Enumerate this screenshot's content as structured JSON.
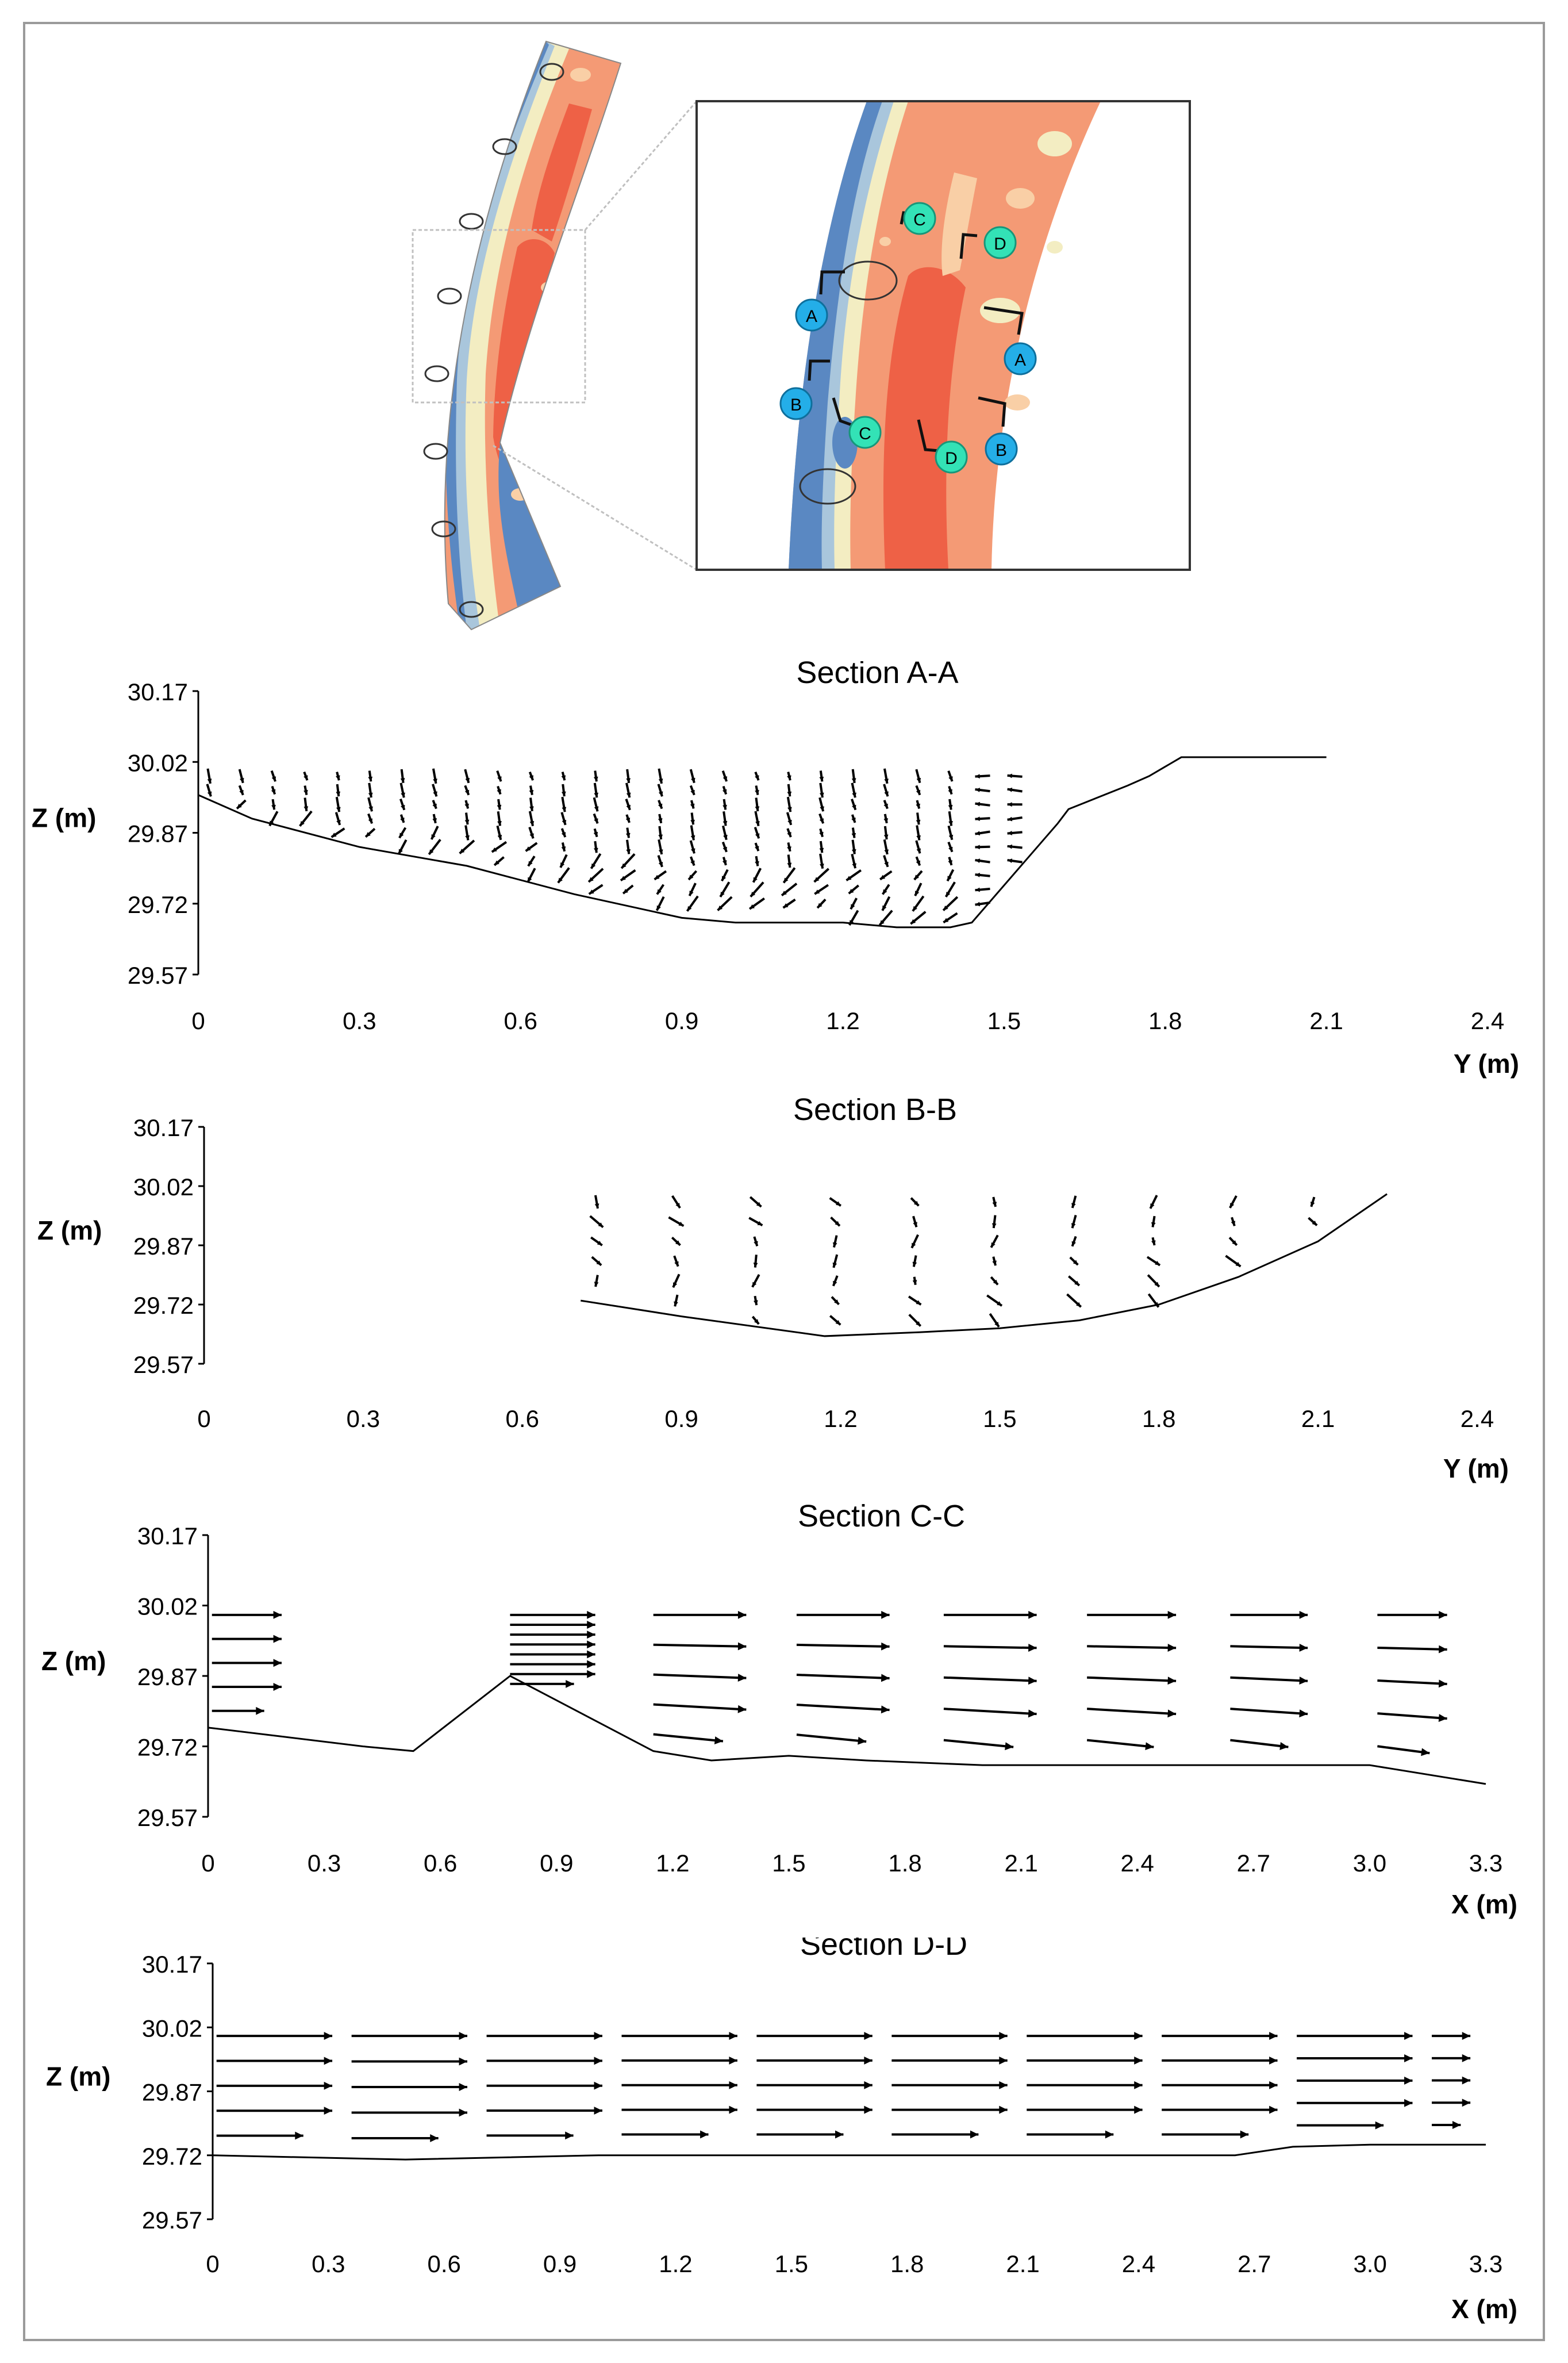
{
  "map": {
    "markers": [
      "A",
      "A",
      "B",
      "B",
      "C",
      "C",
      "D",
      "D"
    ],
    "colors": {
      "deep": "#ee6146",
      "mid": "#f49a75",
      "light": "#f9cfa6",
      "pale": "#f3edc2",
      "shallow": "#a9c6dc",
      "low": "#5a88c2",
      "marker_blue": "#24aee8",
      "marker_green": "#33e2b6"
    }
  },
  "chart_data": [
    {
      "type": "vector",
      "title": "Section A-A",
      "xlabel": "Y (m)",
      "ylabel": "Z (m)",
      "xlim": [
        0,
        2.4
      ],
      "ylim": [
        29.57,
        30.17
      ],
      "xticks": [
        "0",
        "0.3",
        "0.6",
        "0.9",
        "1.2",
        "1.5",
        "1.8",
        "2.1",
        "2.4"
      ],
      "yticks": [
        "30.17",
        "30.02",
        "29.87",
        "29.72",
        "29.57"
      ],
      "bed": {
        "x": [
          0,
          0.1,
          0.3,
          0.5,
          0.7,
          0.9,
          1.0,
          1.2,
          1.3,
          1.4,
          1.44,
          1.6,
          1.62,
          1.73,
          1.77,
          1.8,
          1.83,
          2.1
        ],
        "z": [
          29.95,
          29.9,
          29.84,
          29.8,
          29.74,
          29.69,
          29.68,
          29.68,
          29.67,
          29.67,
          29.68,
          29.89,
          29.92,
          29.97,
          29.99,
          30.01,
          30.03,
          30.03
        ]
      },
      "vectors": {
        "x_start": 0.02,
        "x_step": 0.06,
        "count": 26,
        "z_top": 29.99,
        "z_step": 0.03,
        "surface": 29.995,
        "note": "secondary flow vectors"
      }
    },
    {
      "type": "vector",
      "title": "Section B-B",
      "xlabel": "Y (m)",
      "ylabel": "Z (m)",
      "xlim": [
        0,
        2.4
      ],
      "ylim": [
        29.57,
        30.17
      ],
      "xticks": [
        "0",
        "0.3",
        "0.6",
        "0.9",
        "1.2",
        "1.5",
        "1.8",
        "2.1",
        "2.4"
      ],
      "yticks": [
        "30.17",
        "30.02",
        "29.87",
        "29.72",
        "29.57"
      ],
      "bed": {
        "x": [
          0.71,
          0.9,
          1.17,
          1.35,
          1.5,
          1.65,
          1.8,
          1.95,
          2.1,
          2.23
        ],
        "z": [
          29.73,
          29.69,
          29.64,
          29.65,
          29.66,
          29.68,
          29.72,
          29.79,
          29.88,
          30.0
        ]
      },
      "vectors": {
        "x_start": 0.74,
        "x_step": 0.15,
        "count": 11,
        "z_top": 29.98,
        "z_step": 0.05,
        "surface": 29.99
      }
    },
    {
      "type": "vector",
      "title": "Section C-C",
      "xlabel": "X (m)",
      "ylabel": "Z (m)",
      "xlim": [
        0,
        3.3
      ],
      "ylim": [
        29.57,
        30.17
      ],
      "xticks": [
        "0",
        "0.3",
        "0.6",
        "0.9",
        "1.2",
        "1.5",
        "1.8",
        "2.1",
        "2.4",
        "2.7",
        "3.0",
        "3.3"
      ],
      "yticks": [
        "30.17",
        "30.02",
        "29.87",
        "29.72",
        "29.57"
      ],
      "bed": {
        "x": [
          0,
          0.2,
          0.4,
          0.53,
          0.78,
          1.15,
          1.3,
          1.5,
          1.7,
          2.0,
          2.5,
          3.0,
          3.3
        ],
        "z": [
          29.76,
          29.74,
          29.72,
          29.71,
          29.87,
          29.71,
          29.69,
          29.7,
          29.69,
          29.68,
          29.68,
          29.68,
          29.64
        ]
      },
      "vectors": {
        "columns": [
          0.01,
          0.78,
          1.15,
          1.52,
          1.9,
          2.27,
          2.64,
          3.02
        ],
        "lengths": [
          0.18,
          0.22,
          0.24,
          0.24,
          0.24,
          0.23,
          0.2,
          0.18
        ],
        "surface": 30.0
      }
    },
    {
      "type": "vector",
      "title": "Section D-D",
      "xlabel": "X (m)",
      "ylabel": "Z (m)",
      "xlim": [
        0,
        3.3
      ],
      "ylim": [
        29.57,
        30.17
      ],
      "xticks": [
        "0",
        "0.3",
        "0.6",
        "0.9",
        "1.2",
        "1.5",
        "1.8",
        "2.1",
        "2.4",
        "2.7",
        "3.0",
        "3.3"
      ],
      "yticks": [
        "30.17",
        "30.02",
        "29.87",
        "29.72",
        "29.57"
      ],
      "bed": {
        "x": [
          0,
          0.5,
          1.0,
          1.5,
          2.0,
          2.4,
          2.65,
          2.8,
          3.0,
          3.3
        ],
        "z": [
          29.72,
          29.71,
          29.72,
          29.72,
          29.72,
          29.72,
          29.72,
          29.74,
          29.745,
          29.745
        ]
      },
      "vectors": {
        "columns": [
          0.01,
          0.36,
          0.71,
          1.06,
          1.41,
          1.76,
          2.11,
          2.46,
          2.81,
          3.16
        ],
        "lengths": [
          0.3,
          0.3,
          0.3,
          0.3,
          0.3,
          0.3,
          0.3,
          0.3,
          0.3,
          0.1
        ],
        "surface": 30.0
      }
    }
  ]
}
